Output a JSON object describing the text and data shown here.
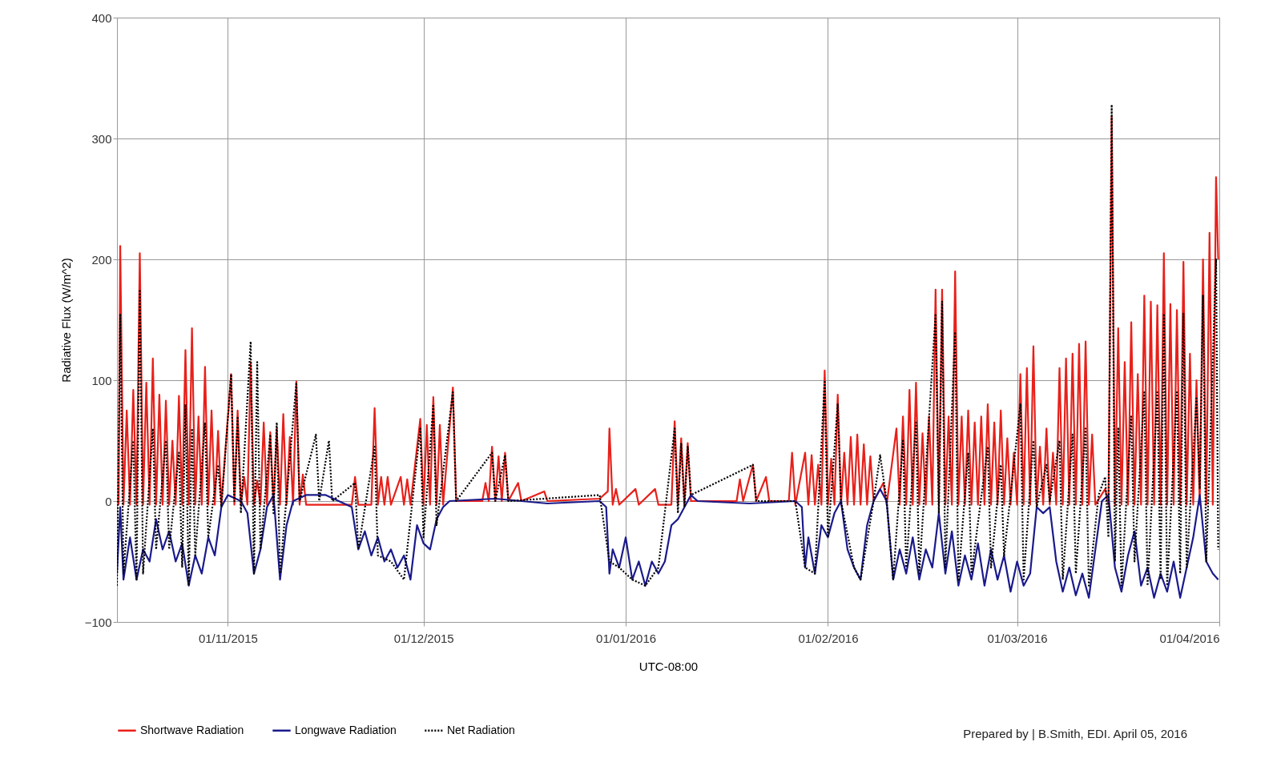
{
  "chart_data": {
    "type": "line",
    "xlabel": "UTC-08:00",
    "ylabel": "Radiative Flux (W/m^2)",
    "xlim": [
      "2015-10-15",
      "2016-04-01"
    ],
    "xticks": [
      {
        "value": "2015-11-01",
        "label": "01/11/2015"
      },
      {
        "value": "2015-12-01",
        "label": "01/12/2015"
      },
      {
        "value": "2016-01-01",
        "label": "01/01/2016"
      },
      {
        "value": "2016-02-01",
        "label": "01/02/2016"
      },
      {
        "value": "2016-03-01",
        "label": "01/03/2016"
      },
      {
        "value": "2016-04-01",
        "label": "01/04/2016"
      }
    ],
    "ylim": [
      -100,
      400
    ],
    "yticks": [
      -100,
      0,
      100,
      200,
      300,
      400
    ],
    "grid": true,
    "legend": "bottom left",
    "marker": "none",
    "annotations": [
      "Prepared by | B.Smith, EDI. April 05, 2016"
    ],
    "series": [
      {
        "name": "Shortwave Radiation",
        "color": "#e8201a",
        "line_style": "solid",
        "x": [
          "2015-10-15T06:00",
          "2015-10-15T12:00",
          "2015-10-16T00:00",
          "2015-10-16T12:00",
          "2015-10-17T00:00",
          "2015-10-17T12:00",
          "2015-10-18T00:00",
          "2015-10-18T12:00",
          "2015-10-19T00:00",
          "2015-10-19T12:00",
          "2015-10-20T00:00",
          "2015-10-20T12:00",
          "2015-10-21T00:00",
          "2015-10-21T12:00",
          "2015-10-22T00:00",
          "2015-10-22T12:00",
          "2015-10-23T00:00",
          "2015-10-23T12:00",
          "2015-10-24T00:00",
          "2015-10-24T12:00",
          "2015-10-25T00:00",
          "2015-10-25T12:00",
          "2015-10-26T00:00",
          "2015-10-26T12:00",
          "2015-10-27T00:00",
          "2015-10-27T12:00",
          "2015-10-28T00:00",
          "2015-10-28T12:00",
          "2015-10-29T00:00",
          "2015-10-29T12:00",
          "2015-10-30T00:00",
          "2015-10-30T12:00",
          "2015-10-31T00:00",
          "2015-11-01T12:00",
          "2015-11-02T00:00",
          "2015-11-02T12:00",
          "2015-11-03T00:00",
          "2015-11-03T12:00",
          "2015-11-04T00:00",
          "2015-11-04T12:00",
          "2015-11-05T00:00",
          "2015-11-05T12:00",
          "2015-11-06T00:00",
          "2015-11-06T12:00",
          "2015-11-07T00:00",
          "2015-11-07T12:00",
          "2015-11-08T00:00",
          "2015-11-08T12:00",
          "2015-11-09T00:00",
          "2015-11-09T12:00",
          "2015-11-10T00:00",
          "2015-11-10T12:00",
          "2015-11-11T00:00",
          "2015-11-11T12:00",
          "2015-11-12T00:00",
          "2015-11-12T12:00",
          "2015-11-13T00:00",
          "2015-11-20T00:00",
          "2015-11-20T12:00",
          "2015-11-21T00:00",
          "2015-11-23T00:00",
          "2015-11-23T12:00",
          "2015-11-24T00:00",
          "2015-11-24T12:00",
          "2015-11-25T00:00",
          "2015-11-25T12:00",
          "2015-11-26T00:00",
          "2015-11-27T12:00",
          "2015-11-28T00:00",
          "2015-11-28T12:00",
          "2015-11-29T00:00",
          "2015-11-30T12:00",
          "2015-12-01T00:00",
          "2015-12-01T12:00",
          "2015-12-02T00:00",
          "2015-12-02T12:00",
          "2015-12-03T00:00",
          "2015-12-03T12:00",
          "2015-12-04T00:00",
          "2015-12-05T12:00",
          "2015-12-06T00:00",
          "2015-12-10T00:00",
          "2015-12-10T12:00",
          "2015-12-11T00:00",
          "2015-12-11T12:00",
          "2015-12-12T00:00",
          "2015-12-12T12:00",
          "2015-12-13T00:00",
          "2015-12-13T12:00",
          "2015-12-14T00:00",
          "2015-12-15T12:00",
          "2015-12-16T00:00",
          "2015-12-19T12:00",
          "2015-12-20T00:00",
          "2015-12-28T00:00",
          "2015-12-29T06:00",
          "2015-12-29T12:00",
          "2015-12-30T00:00",
          "2015-12-30T12:00",
          "2015-12-31T00:00",
          "2016-01-02T12:00",
          "2016-01-03T00:00",
          "2016-01-05T12:00",
          "2016-01-06T00:00",
          "2016-01-08T00:00",
          "2016-01-08T12:00",
          "2016-01-09T00:00",
          "2016-01-09T12:00",
          "2016-01-10T00:00",
          "2016-01-10T12:00",
          "2016-01-11T00:00",
          "2016-01-18T00:00",
          "2016-01-18T12:00",
          "2016-01-19T00:00",
          "2016-01-20T12:00",
          "2016-01-21T00:00",
          "2016-01-22T12:00",
          "2016-01-23T00:00",
          "2016-01-26T00:00",
          "2016-01-26T12:00",
          "2016-01-27T00:00",
          "2016-01-28T12:00",
          "2016-01-29T00:00",
          "2016-01-29T12:00",
          "2016-01-30T00:00",
          "2016-01-30T12:00",
          "2016-01-31T00:00",
          "2016-01-31T12:00",
          "2016-02-01T00:00",
          "2016-02-01T12:00",
          "2016-02-02T00:00",
          "2016-02-02T12:00",
          "2016-02-03T00:00",
          "2016-02-03T12:00",
          "2016-02-04T00:00",
          "2016-02-04T12:00",
          "2016-02-05T00:00",
          "2016-02-05T12:00",
          "2016-02-06T00:00",
          "2016-02-06T12:00",
          "2016-02-07T00:00",
          "2016-02-07T12:00",
          "2016-02-08T00:00",
          "2016-02-09T12:00",
          "2016-02-10T00:00",
          "2016-02-11T12:00",
          "2016-02-12T00:00",
          "2016-02-12T12:00",
          "2016-02-13T00:00",
          "2016-02-13T12:00",
          "2016-02-14T00:00",
          "2016-02-14T12:00",
          "2016-02-15T00:00",
          "2016-02-15T12:00",
          "2016-02-16T00:00",
          "2016-02-16T12:00",
          "2016-02-17T00:00",
          "2016-02-17T12:00",
          "2016-02-18T00:00",
          "2016-02-18T12:00",
          "2016-02-19T00:00",
          "2016-02-19T12:00",
          "2016-02-20T00:00",
          "2016-02-20T12:00",
          "2016-02-21T00:00",
          "2016-02-21T12:00",
          "2016-02-22T00:00",
          "2016-02-22T12:00",
          "2016-02-23T00:00",
          "2016-02-23T12:00",
          "2016-02-24T00:00",
          "2016-02-24T12:00",
          "2016-02-25T00:00",
          "2016-02-25T12:00",
          "2016-02-26T00:00",
          "2016-02-26T12:00",
          "2016-02-27T00:00",
          "2016-02-27T12:00",
          "2016-02-28T00:00",
          "2016-02-28T12:00",
          "2016-02-29T00:00",
          "2016-02-29T12:00",
          "2016-03-01T00:00",
          "2016-03-01T12:00",
          "2016-03-02T00:00",
          "2016-03-02T12:00",
          "2016-03-03T00:00",
          "2016-03-03T12:00",
          "2016-03-04T00:00",
          "2016-03-04T12:00",
          "2016-03-05T00:00",
          "2016-03-05T12:00",
          "2016-03-06T00:00",
          "2016-03-06T12:00",
          "2016-03-07T00:00",
          "2016-03-07T12:00",
          "2016-03-08T00:00",
          "2016-03-08T12:00",
          "2016-03-09T00:00",
          "2016-03-09T12:00",
          "2016-03-10T00:00",
          "2016-03-10T12:00",
          "2016-03-11T00:00",
          "2016-03-11T12:00",
          "2016-03-12T00:00",
          "2016-03-12T12:00",
          "2016-03-13T00:00",
          "2016-03-14T12:00",
          "2016-03-15T00:00",
          "2016-03-15T12:00",
          "2016-03-16T00:00",
          "2016-03-16T12:00",
          "2016-03-17T00:00",
          "2016-03-17T12:00",
          "2016-03-18T00:00",
          "2016-03-18T12:00",
          "2016-03-19T00:00",
          "2016-03-19T12:00",
          "2016-03-20T00:00",
          "2016-03-20T12:00",
          "2016-03-21T00:00",
          "2016-03-21T12:00",
          "2016-03-22T00:00",
          "2016-03-22T12:00",
          "2016-03-23T00:00",
          "2016-03-23T12:00",
          "2016-03-24T00:00",
          "2016-03-24T12:00",
          "2016-03-25T00:00",
          "2016-03-25T12:00",
          "2016-03-26T00:00",
          "2016-03-26T12:00",
          "2016-03-27T00:00",
          "2016-03-27T12:00",
          "2016-03-28T00:00",
          "2016-03-28T12:00",
          "2016-03-29T00:00",
          "2016-03-29T12:00",
          "2016-03-30T00:00",
          "2016-03-30T12:00",
          "2016-03-31T00:00",
          "2016-03-31T12:00",
          "2016-03-31T20:00"
        ],
        "values": [
          -3,
          211,
          -3,
          75,
          -3,
          92,
          -3,
          205,
          -3,
          98,
          -3,
          118,
          -3,
          88,
          -3,
          83,
          -3,
          50,
          -3,
          87,
          -3,
          125,
          -3,
          143,
          -3,
          70,
          -3,
          111,
          -3,
          75,
          -3,
          58,
          -3,
          105,
          -3,
          75,
          -3,
          20,
          -3,
          115,
          -3,
          17,
          -3,
          65,
          -3,
          57,
          -3,
          60,
          -3,
          72,
          -3,
          53,
          -3,
          99,
          -3,
          22,
          -3,
          -3,
          20,
          -3,
          -3,
          77,
          -3,
          20,
          -3,
          20,
          -3,
          20,
          -3,
          18,
          -3,
          68,
          -3,
          63,
          -3,
          86,
          -3,
          63,
          -3,
          94,
          0,
          0,
          15,
          0,
          45,
          0,
          37,
          0,
          40,
          0,
          15,
          0,
          8,
          0,
          2,
          8,
          60,
          -3,
          10,
          -3,
          10,
          -3,
          10,
          -3,
          -3,
          66,
          -3,
          52,
          -3,
          48,
          0,
          0,
          18,
          0,
          30,
          0,
          20,
          0,
          0,
          40,
          -3,
          40,
          -3,
          38,
          -3,
          30,
          -3,
          108,
          -3,
          35,
          -3,
          88,
          -3,
          40,
          -3,
          53,
          -3,
          55,
          -3,
          47,
          -3,
          37,
          0,
          15,
          -3,
          60,
          -3,
          70,
          -3,
          92,
          -3,
          98,
          -3,
          56,
          -3,
          70,
          -3,
          175,
          -3,
          175,
          -3,
          70,
          -3,
          190,
          -3,
          70,
          -3,
          75,
          -3,
          65,
          -3,
          70,
          -3,
          80,
          -3,
          65,
          -3,
          75,
          -3,
          52,
          -3,
          40,
          -3,
          105,
          -3,
          110,
          -3,
          128,
          -3,
          45,
          -3,
          60,
          -3,
          40,
          -3,
          110,
          -3,
          118,
          -3,
          122,
          -3,
          130,
          -3,
          132,
          -3,
          55,
          -3,
          10,
          -3,
          318,
          -3,
          143,
          -3,
          115,
          -3,
          148,
          -3,
          105,
          -3,
          170,
          -3,
          165,
          -3,
          162,
          -3,
          205,
          -3,
          163,
          -3,
          158,
          -3,
          198,
          -3,
          122,
          -3,
          100,
          -3,
          200,
          -3,
          222,
          -3,
          268,
          200
        ]
      },
      {
        "name": "Longwave Radiation",
        "color": "#1a1a8c",
        "line_style": "solid",
        "x": [
          "2015-10-15T00:00",
          "2015-10-15T12:00",
          "2015-10-16T00:00",
          "2015-10-17T00:00",
          "2015-10-18T00:00",
          "2015-10-19T00:00",
          "2015-10-20T00:00",
          "2015-10-21T00:00",
          "2015-10-22T00:00",
          "2015-10-23T00:00",
          "2015-10-24T00:00",
          "2015-10-25T00:00",
          "2015-10-26T00:00",
          "2015-10-27T00:00",
          "2015-10-28T00:00",
          "2015-10-29T00:00",
          "2015-10-30T00:00",
          "2015-10-31T00:00",
          "2015-11-01T00:00",
          "2015-11-03T00:00",
          "2015-11-04T00:00",
          "2015-11-05T00:00",
          "2015-11-06T00:00",
          "2015-11-07T00:00",
          "2015-11-08T00:00",
          "2015-11-09T00:00",
          "2015-11-10T00:00",
          "2015-11-11T00:00",
          "2015-11-13T00:00",
          "2015-11-16T00:00",
          "2015-11-18T00:00",
          "2015-11-20T00:00",
          "2015-11-21T00:00",
          "2015-11-22T00:00",
          "2015-11-23T00:00",
          "2015-11-24T00:00",
          "2015-11-25T00:00",
          "2015-11-26T00:00",
          "2015-11-27T00:00",
          "2015-11-28T00:00",
          "2015-11-29T00:00",
          "2015-11-30T00:00",
          "2015-12-01T00:00",
          "2015-12-02T00:00",
          "2015-12-03T00:00",
          "2015-12-04T00:00",
          "2015-12-05T00:00",
          "2015-12-12T00:00",
          "2015-12-20T00:00",
          "2015-12-28T00:00",
          "2015-12-29T00:00",
          "2015-12-29T12:00",
          "2015-12-30T00:00",
          "2015-12-31T00:00",
          "2016-01-01T00:00",
          "2016-01-02T00:00",
          "2016-01-03T00:00",
          "2016-01-04T00:00",
          "2016-01-05T00:00",
          "2016-01-06T00:00",
          "2016-01-07T00:00",
          "2016-01-08T00:00",
          "2016-01-09T00:00",
          "2016-01-10T00:00",
          "2016-01-11T00:00",
          "2016-01-12T00:00",
          "2016-01-20T00:00",
          "2016-01-27T00:00",
          "2016-01-28T00:00",
          "2016-01-28T12:00",
          "2016-01-29T00:00",
          "2016-01-30T00:00",
          "2016-01-31T00:00",
          "2016-02-01T00:00",
          "2016-02-02T00:00",
          "2016-02-03T00:00",
          "2016-02-04T00:00",
          "2016-02-05T00:00",
          "2016-02-06T00:00",
          "2016-02-07T00:00",
          "2016-02-08T00:00",
          "2016-02-09T00:00",
          "2016-02-10T00:00",
          "2016-02-11T00:00",
          "2016-02-12T00:00",
          "2016-02-13T00:00",
          "2016-02-14T00:00",
          "2016-02-15T00:00",
          "2016-02-16T00:00",
          "2016-02-17T00:00",
          "2016-02-18T00:00",
          "2016-02-19T00:00",
          "2016-02-20T00:00",
          "2016-02-21T00:00",
          "2016-02-22T00:00",
          "2016-02-23T00:00",
          "2016-02-24T00:00",
          "2016-02-25T00:00",
          "2016-02-26T00:00",
          "2016-02-27T00:00",
          "2016-02-28T00:00",
          "2016-02-29T00:00",
          "2016-03-01T00:00",
          "2016-03-02T00:00",
          "2016-03-03T00:00",
          "2016-03-04T00:00",
          "2016-03-05T00:00",
          "2016-03-06T00:00",
          "2016-03-07T00:00",
          "2016-03-08T00:00",
          "2016-03-09T00:00",
          "2016-03-10T00:00",
          "2016-03-11T00:00",
          "2016-03-12T00:00",
          "2016-03-13T00:00",
          "2016-03-14T00:00",
          "2016-03-15T00:00",
          "2016-03-16T00:00",
          "2016-03-17T00:00",
          "2016-03-18T00:00",
          "2016-03-19T00:00",
          "2016-03-20T00:00",
          "2016-03-21T00:00",
          "2016-03-22T00:00",
          "2016-03-23T00:00",
          "2016-03-24T00:00",
          "2016-03-25T00:00",
          "2016-03-26T00:00",
          "2016-03-27T00:00",
          "2016-03-28T00:00",
          "2016-03-29T00:00",
          "2016-03-30T00:00",
          "2016-03-31T00:00",
          "2016-03-31T20:00"
        ],
        "values": [
          -60,
          -5,
          -65,
          -30,
          -65,
          -40,
          -50,
          -15,
          -40,
          -25,
          -50,
          -35,
          -70,
          -45,
          -60,
          -30,
          -45,
          -5,
          5,
          0,
          -10,
          -60,
          -40,
          -5,
          5,
          -65,
          -20,
          0,
          5,
          5,
          0,
          -5,
          -40,
          -25,
          -45,
          -30,
          -50,
          -40,
          -55,
          -45,
          -65,
          -20,
          -35,
          -40,
          -15,
          -5,
          0,
          2,
          -2,
          0,
          -5,
          -60,
          -40,
          -55,
          -30,
          -65,
          -50,
          -70,
          -50,
          -60,
          -50,
          -20,
          -15,
          -5,
          5,
          0,
          -2,
          0,
          -5,
          -55,
          -30,
          -60,
          -20,
          -30,
          -10,
          0,
          -40,
          -55,
          -65,
          -20,
          0,
          10,
          0,
          -65,
          -40,
          -60,
          -30,
          -65,
          -40,
          -55,
          -10,
          -60,
          -25,
          -70,
          -45,
          -65,
          -35,
          -70,
          -40,
          -65,
          -45,
          -75,
          -50,
          -70,
          -60,
          -5,
          -10,
          -5,
          -50,
          -75,
          -55,
          -78,
          -60,
          -80,
          -40,
          0,
          5,
          -55,
          -75,
          -45,
          -25,
          -70,
          -55,
          -80,
          -60,
          -75,
          -50,
          -80,
          -55,
          -30,
          5,
          -50,
          -60,
          -65
        ]
      },
      {
        "name": "Net Radiation",
        "color": "#000000",
        "line_style": "dotted",
        "x": [
          "2015-10-15T00:00",
          "2015-10-15T12:00",
          "2015-10-16T00:00",
          "2015-10-17T12:00",
          "2015-10-18T00:00",
          "2015-10-18T12:00",
          "2015-10-19T00:00",
          "2015-10-20T12:00",
          "2015-10-21T00:00",
          "2015-10-22T12:00",
          "2015-10-23T00:00",
          "2015-10-24T12:00",
          "2015-10-25T00:00",
          "2015-10-25T12:00",
          "2015-10-26T00:00",
          "2015-10-26T12:00",
          "2015-10-27T00:00",
          "2015-10-28T12:00",
          "2015-10-29T00:00",
          "2015-10-30T12:00",
          "2015-10-31T00:00",
          "2015-11-01T12:00",
          "2015-11-02T00:00",
          "2015-11-02T12:00",
          "2015-11-03T00:00",
          "2015-11-04T12:00",
          "2015-11-05T00:00",
          "2015-11-05T12:00",
          "2015-11-06T00:00",
          "2015-11-07T12:00",
          "2015-11-08T00:00",
          "2015-11-08T12:00",
          "2015-11-09T00:00",
          "2015-11-11T12:00",
          "2015-11-12T00:00",
          "2015-11-14T12:00",
          "2015-11-15T00:00",
          "2015-11-16T12:00",
          "2015-11-17T00:00",
          "2015-11-20T12:00",
          "2015-11-21T00:00",
          "2015-11-23T12:00",
          "2015-11-24T00:00",
          "2015-11-26T00:00",
          "2015-11-28T00:00",
          "2015-11-30T12:00",
          "2015-12-01T00:00",
          "2015-12-02T12:00",
          "2015-12-03T00:00",
          "2015-12-05T12:00",
          "2015-12-06T00:00",
          "2015-12-11T12:00",
          "2015-12-12T00:00",
          "2015-12-13T12:00",
          "2015-12-14T00:00",
          "2015-12-28T00:00",
          "2015-12-29T12:00",
          "2015-12-31T00:00",
          "2016-01-02T00:00",
          "2016-01-04T00:00",
          "2016-01-06T00:00",
          "2016-01-08T12:00",
          "2016-01-09T00:00",
          "2016-01-09T12:00",
          "2016-01-10T00:00",
          "2016-01-10T12:00",
          "2016-01-11T00:00",
          "2016-01-20T12:00",
          "2016-01-21T00:00",
          "2016-01-27T00:00",
          "2016-01-28T12:00",
          "2016-01-30T00:00",
          "2016-01-31T12:00",
          "2016-02-01T00:00",
          "2016-02-02T12:00",
          "2016-02-03T00:00",
          "2016-02-05T00:00",
          "2016-02-06T00:00",
          "2016-02-08T00:00",
          "2016-02-09T00:00",
          "2016-02-10T00:00",
          "2016-02-11T00:00",
          "2016-02-12T12:00",
          "2016-02-13T00:00",
          "2016-02-14T12:00",
          "2016-02-15T00:00",
          "2016-02-17T12:00",
          "2016-02-18T00:00",
          "2016-02-18T12:00",
          "2016-02-19T00:00",
          "2016-02-20T12:00",
          "2016-02-21T00:00",
          "2016-02-22T12:00",
          "2016-02-23T00:00",
          "2016-02-25T12:00",
          "2016-02-26T00:00",
          "2016-02-27T12:00",
          "2016-02-28T00:00",
          "2016-03-01T12:00",
          "2016-03-02T00:00",
          "2016-03-03T12:00",
          "2016-03-04T00:00",
          "2016-03-05T12:00",
          "2016-03-06T00:00",
          "2016-03-07T12:00",
          "2016-03-08T00:00",
          "2016-03-09T12:00",
          "2016-03-10T00:00",
          "2016-03-11T12:00",
          "2016-03-12T00:00",
          "2016-03-13T12:00",
          "2016-03-14T12:00",
          "2016-03-15T00:00",
          "2016-03-15T12:00",
          "2016-03-16T00:00",
          "2016-03-16T12:00",
          "2016-03-17T00:00",
          "2016-03-18T12:00",
          "2016-03-19T00:00",
          "2016-03-20T12:00",
          "2016-03-21T00:00",
          "2016-03-22T12:00",
          "2016-03-23T00:00",
          "2016-03-23T12:00",
          "2016-03-24T00:00",
          "2016-03-25T12:00",
          "2016-03-26T00:00",
          "2016-03-26T12:00",
          "2016-03-27T00:00",
          "2016-03-28T12:00",
          "2016-03-29T00:00",
          "2016-03-29T12:00",
          "2016-03-30T00:00",
          "2016-03-31T12:00",
          "2016-03-31T20:00"
        ],
        "values": [
          -70,
          155,
          -60,
          50,
          -65,
          175,
          -60,
          60,
          -40,
          50,
          -40,
          40,
          -55,
          80,
          -70,
          60,
          -45,
          65,
          -30,
          30,
          -5,
          105,
          0,
          70,
          -10,
          132,
          -60,
          115,
          -40,
          55,
          -10,
          65,
          -60,
          98,
          0,
          55,
          0,
          50,
          0,
          15,
          -40,
          45,
          -45,
          -50,
          -65,
          60,
          -30,
          80,
          -20,
          90,
          0,
          40,
          0,
          38,
          0,
          5,
          -50,
          -55,
          -65,
          -70,
          -55,
          60,
          -10,
          48,
          -5,
          45,
          5,
          30,
          0,
          0,
          -55,
          -60,
          100,
          -30,
          80,
          0,
          -55,
          -65,
          0,
          38,
          0,
          -65,
          50,
          -55,
          65,
          -60,
          155,
          -10,
          165,
          -55,
          140,
          -65,
          40,
          -60,
          45,
          -55,
          30,
          -45,
          80,
          -65,
          50,
          -5,
          30,
          0,
          50,
          -65,
          55,
          -60,
          60,
          -70,
          5,
          20,
          -30,
          328,
          -50,
          60,
          -70,
          70,
          -50,
          90,
          -70,
          90,
          -65,
          155,
          -70,
          90,
          -60,
          155,
          -55,
          85,
          10,
          170,
          -50,
          200,
          -40
        ]
      }
    ]
  }
}
